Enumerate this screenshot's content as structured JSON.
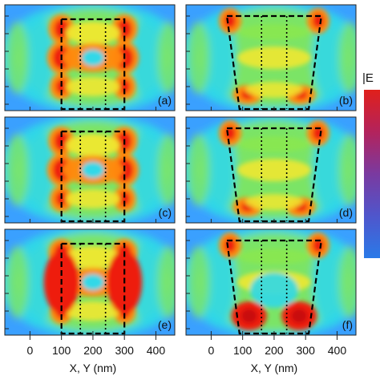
{
  "panels": [
    {
      "id": "a",
      "label": "(a)",
      "shape": "rect"
    },
    {
      "id": "b",
      "label": "(b)",
      "shape": "trap-inverted"
    },
    {
      "id": "c",
      "label": "(c)",
      "shape": "rect"
    },
    {
      "id": "d",
      "label": "(d)",
      "shape": "trap-inverted"
    },
    {
      "id": "e",
      "label": "(e)",
      "shape": "rect"
    },
    {
      "id": "f",
      "label": "(f)",
      "shape": "trap-inverted"
    }
  ],
  "x_axis": {
    "label": "X, Y (nm)",
    "ticks": [
      "0",
      "100",
      "200",
      "300",
      "400"
    ],
    "range": [
      -80,
      460
    ]
  },
  "colorbar": {
    "title": "|E",
    "colors": [
      "#e0201b",
      "#c0204a",
      "#9a2a78",
      "#7a3aa0",
      "#5a4ec0",
      "#3a62d8",
      "#2a7ae8"
    ]
  },
  "field_palette": {
    "background": "#3aa0ff",
    "cyan": "#30d8e8",
    "green": "#8ae850",
    "yellow": "#f0e830",
    "orange": "#ff8a10",
    "red": "#ee1b0e",
    "dark_red": "#c80808",
    "blue": "#2a6cf0"
  }
}
